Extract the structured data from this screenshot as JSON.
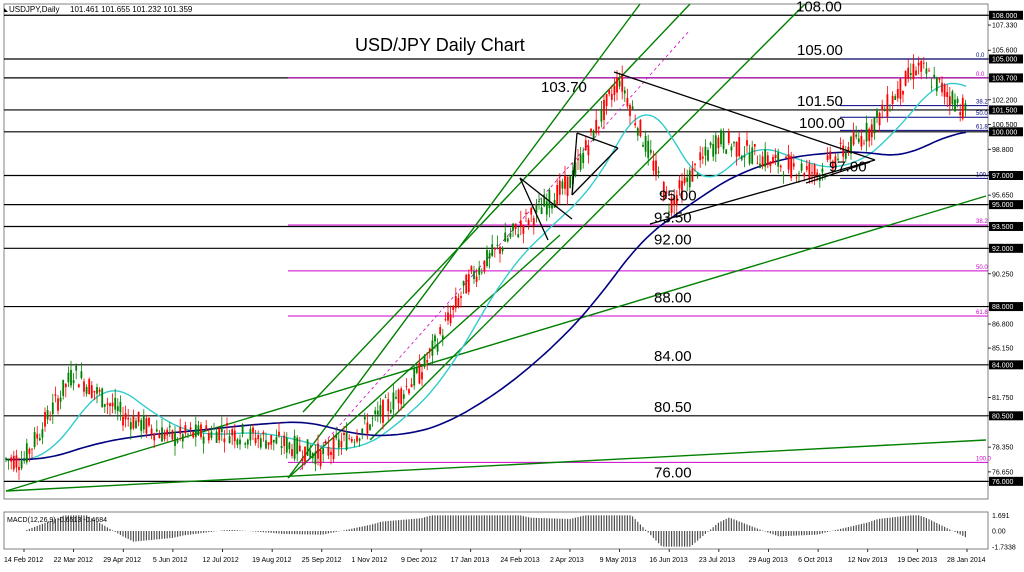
{
  "header": {
    "symbol_line": "USDJPY,Daily",
    "ohlc": "101.461 101.655 101.232 101.359"
  },
  "chart_data": {
    "type": "candlestick",
    "title": "USD/JPY Daily Chart",
    "y_range": [
      75.0,
      108.6
    ],
    "right_axis_ticks": [
      108.0,
      107.33,
      105.6,
      105.0,
      103.7,
      102.2,
      101.5,
      100.5,
      100.0,
      98.8,
      97.0,
      95.65,
      95.0,
      93.5,
      92.0,
      90.25,
      88.0,
      86.8,
      85.15,
      84.0,
      81.75,
      80.5,
      78.35,
      76.65,
      76.0
    ],
    "right_axis_labels": [
      "108.000",
      "107.330",
      "105.600",
      "105.000",
      "103.700",
      "102.200",
      "101.500",
      "100.500",
      "100.000",
      "98.800",
      "97.000",
      "95.650",
      "95.000",
      "93.500",
      "92.000",
      "90.250",
      "88.000",
      "86.800",
      "85.150",
      "84.000",
      "81.750",
      "80.500",
      "78.350",
      "76.650",
      "76.000"
    ],
    "x_labels": [
      "14 Feb 2012",
      "22 Mar 2012",
      "29 Apr 2012",
      "5 Jun 2012",
      "12 Jul 2012",
      "19 Aug 2012",
      "25 Sep 2012",
      "1 Nov 2012",
      "9 Dec 2012",
      "17 Jan 2013",
      "24 Feb 2013",
      "2 Apr 2013",
      "9 May 2013",
      "16 Jun 2013",
      "23 Jul 2013",
      "29 Aug 2013",
      "6 Oct 2013",
      "12 Nov 2013",
      "19 Dec 2013",
      "28 Jan 2014"
    ],
    "horizontal_levels": [
      {
        "label": "108.00",
        "value": 108.0
      },
      {
        "label": "105.00",
        "value": 105.0
      },
      {
        "label": "103.70",
        "value": 103.7
      },
      {
        "label": "101.50",
        "value": 101.5
      },
      {
        "label": "100.00",
        "value": 100.0
      },
      {
        "label": "97.00",
        "value": 97.0
      },
      {
        "label": "95.00",
        "value": 95.0
      },
      {
        "label": "93.50",
        "value": 93.5
      },
      {
        "label": "92.00",
        "value": 92.0
      },
      {
        "label": "88.00",
        "value": 88.0
      },
      {
        "label": "84.00",
        "value": 84.0
      },
      {
        "label": "80.50",
        "value": 80.5
      },
      {
        "label": "76.00",
        "value": 76.0
      }
    ],
    "fib_levels_upper": [
      {
        "label": "0.0",
        "value": 105.0
      },
      {
        "label": "38.2",
        "value": 101.8
      },
      {
        "label": "50.0",
        "value": 101.0
      },
      {
        "label": "61.8",
        "value": 100.1
      },
      {
        "label": "100.0",
        "value": 96.8
      }
    ],
    "fib_levels_lower": [
      {
        "label": "0.0",
        "value": 103.7
      },
      {
        "label": "38.2",
        "value": 93.6
      },
      {
        "label": "50.0",
        "value": 90.45
      },
      {
        "label": "61.8",
        "value": 87.35
      },
      {
        "label": "100.0",
        "value": 77.3
      }
    ],
    "price_path": [
      {
        "x": "14 Feb 2012",
        "y": 77.5
      },
      {
        "x": "22 Mar 2012",
        "y": 83.5
      },
      {
        "x": "29 Apr 2012",
        "y": 80.5
      },
      {
        "x": "5 Jun 2012",
        "y": 79.0
      },
      {
        "x": "12 Jul 2012",
        "y": 79.5
      },
      {
        "x": "19 Aug 2012",
        "y": 78.8
      },
      {
        "x": "25 Sep 2012",
        "y": 77.8
      },
      {
        "x": "1 Nov 2012",
        "y": 80.0
      },
      {
        "x": "9 Dec 2012",
        "y": 83.5
      },
      {
        "x": "17 Jan 2013",
        "y": 90.0
      },
      {
        "x": "24 Feb 2013",
        "y": 93.5
      },
      {
        "x": "2 Apr 2013",
        "y": 96.5
      },
      {
        "x": "9 May 2013",
        "y": 103.7
      },
      {
        "x": "16 Jun 2013",
        "y": 95.0
      },
      {
        "x": "23 Jul 2013",
        "y": 99.5
      },
      {
        "x": "29 Aug 2013",
        "y": 98.0
      },
      {
        "x": "6 Oct 2013",
        "y": 97.2
      },
      {
        "x": "12 Nov 2013",
        "y": 100.0
      },
      {
        "x": "19 Dec 2013",
        "y": 104.5
      },
      {
        "x": "28 Jan 2014",
        "y": 101.4
      }
    ],
    "macd": {
      "label": "MACD(12,26,9) -0.6513 -0.4684",
      "ticks": [
        1.691,
        0.0,
        -1.7338
      ],
      "tick_labels": [
        "1.691",
        "0.00",
        "-1.7338"
      ]
    },
    "colors": {
      "level_line": "#000000",
      "fib_upper": "#000080",
      "fib_lower": "#cc00cc",
      "channel": "#008000",
      "ma_fast": "#33cccc",
      "ma_slow": "#000080",
      "bull": "#008000",
      "bear": "#ff0000"
    }
  }
}
